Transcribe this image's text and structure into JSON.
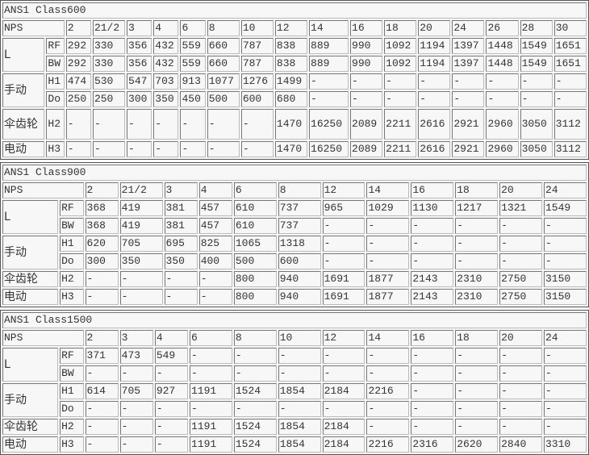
{
  "tables": [
    {
      "title": "ANS1 Class600",
      "nps_label": "NPS",
      "sizes": [
        "2",
        "21/2",
        "3",
        "4",
        "6",
        "8",
        "10",
        "12",
        "14",
        "16",
        "18",
        "20",
        "24",
        "26",
        "28",
        "30"
      ],
      "groups": [
        {
          "label": "L",
          "rows": [
            {
              "key": "RF",
              "values": [
                "292",
                "330",
                "356",
                "432",
                "559",
                "660",
                "787",
                "838",
                "889",
                "990",
                "1092",
                "1194",
                "1397",
                "1448",
                "1549",
                "1651"
              ]
            },
            {
              "key": "BW",
              "values": [
                "292",
                "330",
                "356",
                "432",
                "559",
                "660",
                "787",
                "838",
                "889",
                "990",
                "1092",
                "1194",
                "1397",
                "1448",
                "1549",
                "1651"
              ]
            }
          ]
        },
        {
          "label": "手动",
          "rows": [
            {
              "key": "H1",
              "values": [
                "474",
                "530",
                "547",
                "703",
                "913",
                "1077",
                "1276",
                "1499",
                "-",
                "-",
                "-",
                "-",
                "-",
                "-",
                "-",
                "-"
              ]
            },
            {
              "key": "Do",
              "values": [
                "250",
                "250",
                "300",
                "350",
                "450",
                "500",
                "600",
                "680",
                "-",
                "-",
                "-",
                "-",
                "-",
                "-",
                "-",
                "-"
              ]
            }
          ]
        },
        {
          "label": "伞齿轮",
          "tall": true,
          "rows": [
            {
              "key": "H2",
              "values": [
                "-",
                "-",
                "-",
                "-",
                "-",
                "-",
                "-",
                "1470",
                "16250",
                "2089",
                "2211",
                "2616",
                "2921",
                "2960",
                "3050",
                "3112"
              ]
            }
          ]
        },
        {
          "label": "电动",
          "rows": [
            {
              "key": "H3",
              "values": [
                "-",
                "-",
                "-",
                "-",
                "-",
                "-",
                "-",
                "1470",
                "16250",
                "2089",
                "2211",
                "2616",
                "2921",
                "2960",
                "3050",
                "3112"
              ]
            }
          ]
        }
      ]
    },
    {
      "title": "ANS1 Class900",
      "nps_label": "NPS",
      "sizes": [
        "2",
        "21/2",
        "3",
        "4",
        "6",
        "8",
        "12",
        "14",
        "16",
        "18",
        "20",
        "24"
      ],
      "groups": [
        {
          "label": "L",
          "rows": [
            {
              "key": "RF",
              "values": [
                "368",
                "419",
                "381",
                "457",
                "610",
                "737",
                "965",
                "1029",
                "1130",
                "1217",
                "1321",
                "1549"
              ]
            },
            {
              "key": "BW",
              "values": [
                "368",
                "419",
                "381",
                "457",
                "610",
                "737",
                "-",
                "-",
                "-",
                "-",
                "-",
                "-"
              ]
            }
          ]
        },
        {
          "label": "手动",
          "rows": [
            {
              "key": "H1",
              "values": [
                "620",
                "705",
                "695",
                "825",
                "1065",
                "1318",
                "-",
                "-",
                "-",
                "-",
                "-",
                "-"
              ]
            },
            {
              "key": "Do",
              "values": [
                "300",
                "350",
                "350",
                "400",
                "500",
                "600",
                "-",
                "-",
                "-",
                "-",
                "-",
                "-"
              ]
            }
          ]
        },
        {
          "label": "伞齿轮",
          "rows": [
            {
              "key": "H2",
              "values": [
                "-",
                "-",
                "-",
                "-",
                "800",
                "940",
                "1691",
                "1877",
                "2143",
                "2310",
                "2750",
                "3150"
              ]
            }
          ]
        },
        {
          "label": "电动",
          "rows": [
            {
              "key": "H3",
              "values": [
                "-",
                "-",
                "-",
                "-",
                "800",
                "940",
                "1691",
                "1877",
                "2143",
                "2310",
                "2750",
                "3150"
              ]
            }
          ]
        }
      ]
    },
    {
      "title": "ANS1 Class1500",
      "nps_label": "NPS",
      "sizes": [
        "2",
        "3",
        "4",
        "6",
        "8",
        "10",
        "12",
        "14",
        "16",
        "18",
        "20",
        "24"
      ],
      "groups": [
        {
          "label": "L",
          "rows": [
            {
              "key": "RF",
              "values": [
                "371",
                "473",
                "549",
                "-",
                "-",
                "-",
                "-",
                "-",
                "-",
                "-",
                "-",
                "-"
              ]
            },
            {
              "key": "BW",
              "values": [
                "-",
                "-",
                "-",
                "-",
                "-",
                "-",
                "-",
                "-",
                "-",
                "-",
                "-",
                "-"
              ]
            }
          ]
        },
        {
          "label": "手动",
          "rows": [
            {
              "key": "H1",
              "values": [
                "614",
                "705",
                "927",
                "1191",
                "1524",
                "1854",
                "2184",
                "2216",
                "-",
                "-",
                "-",
                "-"
              ]
            },
            {
              "key": "Do",
              "values": [
                "-",
                "-",
                "-",
                "-",
                "-",
                "-",
                "-",
                "-",
                "-",
                "-",
                "-",
                "-"
              ]
            }
          ]
        },
        {
          "label": "伞齿轮",
          "rows": [
            {
              "key": "H2",
              "values": [
                "-",
                "-",
                "-",
                "1191",
                "1524",
                "1854",
                "2184",
                "-",
                "-",
                "-",
                "-",
                "-"
              ]
            }
          ]
        },
        {
          "label": "电动",
          "rows": [
            {
              "key": "H3",
              "values": [
                "-",
                "-",
                "-",
                "1191",
                "1524",
                "1854",
                "2184",
                "2216",
                "2316",
                "2620",
                "2840",
                "3310"
              ]
            }
          ]
        }
      ]
    }
  ]
}
